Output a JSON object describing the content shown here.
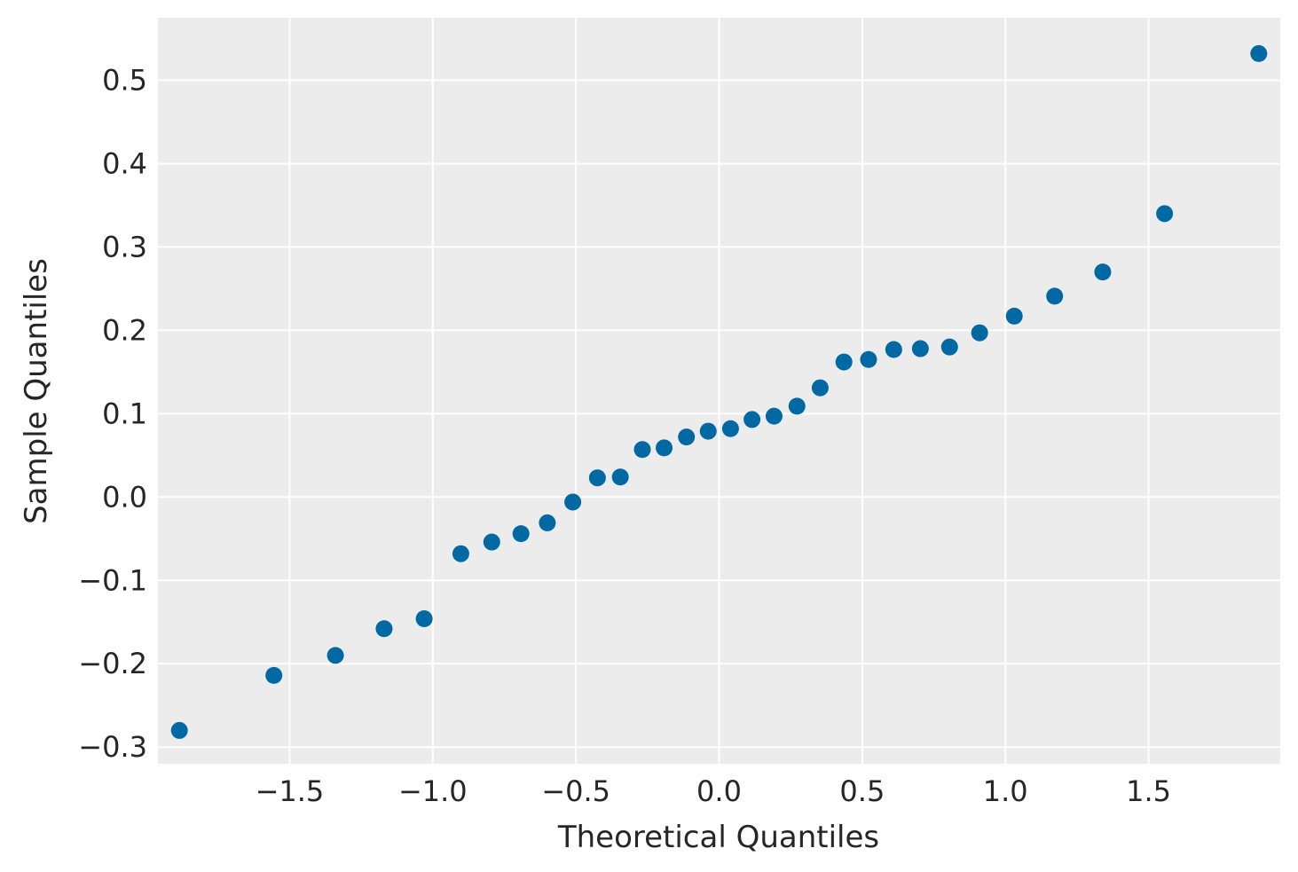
{
  "chart_data": {
    "type": "scatter",
    "xlabel": "Theoretical Quantiles",
    "ylabel": "Sample Quantiles",
    "xlim": [
      -1.96,
      1.96
    ],
    "ylim": [
      -0.32,
      0.575
    ],
    "grid": true,
    "x_ticks": [
      -1.5,
      -1.0,
      -0.5,
      0.0,
      0.5,
      1.0,
      1.5
    ],
    "x_tick_labels": [
      "−1.5",
      "−1.0",
      "−0.5",
      "0.0",
      "0.5",
      "1.0",
      "1.5"
    ],
    "y_ticks": [
      -0.3,
      -0.2,
      -0.1,
      0.0,
      0.1,
      0.2,
      0.3,
      0.4,
      0.5
    ],
    "y_tick_labels": [
      "−0.3",
      "−0.2",
      "−0.1",
      "0.0",
      "0.1",
      "0.2",
      "0.3",
      "0.4",
      "0.5"
    ],
    "colors": {
      "point": "#0069a3",
      "plot_bg": "#ececec",
      "grid": "#ffffff",
      "text": "#262626"
    },
    "series": [
      {
        "points": [
          [
            -1.885,
            -0.28
          ],
          [
            -1.555,
            -0.214
          ],
          [
            -1.34,
            -0.19
          ],
          [
            -1.17,
            -0.158
          ],
          [
            -1.03,
            -0.146
          ],
          [
            -0.902,
            -0.068
          ],
          [
            -0.794,
            -0.054
          ],
          [
            -0.692,
            -0.044
          ],
          [
            -0.6,
            -0.031
          ],
          [
            -0.511,
            -0.006
          ],
          [
            -0.425,
            0.023
          ],
          [
            -0.345,
            0.024
          ],
          [
            -0.268,
            0.057
          ],
          [
            -0.192,
            0.059
          ],
          [
            -0.114,
            0.072
          ],
          [
            -0.038,
            0.079
          ],
          [
            0.04,
            0.082
          ],
          [
            0.115,
            0.093
          ],
          [
            0.192,
            0.097
          ],
          [
            0.272,
            0.109
          ],
          [
            0.353,
            0.131
          ],
          [
            0.436,
            0.162
          ],
          [
            0.522,
            0.165
          ],
          [
            0.61,
            0.177
          ],
          [
            0.703,
            0.178
          ],
          [
            0.805,
            0.18
          ],
          [
            0.91,
            0.197
          ],
          [
            1.031,
            0.217
          ],
          [
            1.172,
            0.241
          ],
          [
            1.34,
            0.27
          ],
          [
            1.556,
            0.34
          ],
          [
            1.885,
            0.532
          ]
        ]
      }
    ]
  }
}
